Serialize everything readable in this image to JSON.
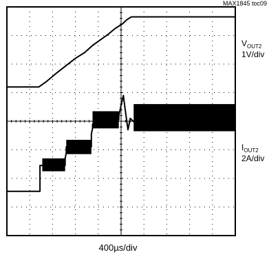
{
  "figure_id": "MAX1845 toc09",
  "channels": [
    {
      "name": "V",
      "subscript": "OUT2",
      "scale": "1V/div"
    },
    {
      "name": "I",
      "subscript": "OUT2",
      "scale": "2A/div"
    }
  ],
  "timebase": "400µs/div",
  "colors": {
    "trace": "#000000",
    "grid": "#000000",
    "background": "#ffffff"
  },
  "chart_data": {
    "type": "line",
    "grid": true,
    "x_unit": "div",
    "xlim": [
      0,
      10
    ],
    "ylim": [
      0,
      8
    ],
    "series": [
      {
        "name": "VOUT2",
        "points": [
          [
            0.0,
            5.2
          ],
          [
            1.4,
            5.2
          ],
          [
            1.75,
            5.4
          ],
          [
            2.2,
            5.7
          ],
          [
            2.6,
            5.95
          ],
          [
            3.0,
            6.2
          ],
          [
            3.4,
            6.4
          ],
          [
            3.75,
            6.65
          ],
          [
            4.1,
            6.85
          ],
          [
            4.45,
            7.05
          ],
          [
            4.75,
            7.25
          ],
          [
            5.05,
            7.4
          ],
          [
            5.25,
            7.55
          ],
          [
            5.45,
            7.65
          ],
          [
            10.0,
            7.65
          ]
        ]
      },
      {
        "name": "IOUT2",
        "points": [
          [
            0.0,
            1.55
          ],
          [
            1.45,
            1.55
          ],
          [
            1.45,
            2.45
          ],
          [
            2.55,
            2.45
          ],
          [
            2.55,
            2.7
          ],
          [
            2.6,
            2.9
          ],
          [
            2.6,
            3.1
          ],
          [
            3.7,
            3.1
          ],
          [
            3.7,
            3.55
          ],
          [
            3.75,
            3.75
          ],
          [
            3.75,
            3.9
          ],
          [
            3.9,
            3.9
          ],
          [
            3.9,
            4.05
          ],
          [
            4.9,
            4.05
          ],
          [
            4.9,
            4.2
          ],
          [
            5.1,
            4.9
          ],
          [
            5.2,
            4.3
          ],
          [
            5.3,
            3.7
          ],
          [
            5.4,
            4.1
          ],
          [
            5.6,
            3.95
          ],
          [
            5.6,
            4.25
          ],
          [
            10.0,
            4.25
          ]
        ],
        "ripple_bands": [
          [
            1.55,
            2.55,
            2.25,
            2.7
          ],
          [
            2.6,
            3.7,
            2.85,
            3.35
          ],
          [
            3.75,
            4.9,
            3.75,
            4.35
          ],
          [
            5.55,
            10.0,
            3.65,
            4.6
          ]
        ]
      }
    ]
  }
}
